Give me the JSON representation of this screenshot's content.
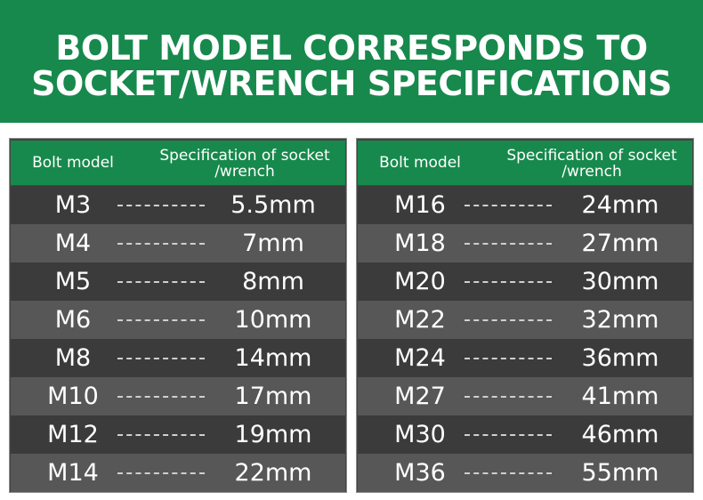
{
  "header": {
    "title": [
      "BOLT MODEL CORRESPONDS TO",
      "SOCKET/WRENCH SPECIFICATIONS"
    ]
  },
  "tables": [
    {
      "columns": {
        "model": "Bolt model",
        "spec": [
          "Specification of socket",
          "/wrench"
        ]
      },
      "rows": [
        [
          "M3",
          "5.5mm"
        ],
        [
          "M4",
          "7mm"
        ],
        [
          "M5",
          "8mm"
        ],
        [
          "M6",
          "10mm"
        ],
        [
          "M8",
          "14mm"
        ],
        [
          "M10",
          "17mm"
        ],
        [
          "M12",
          "19mm"
        ],
        [
          "M14",
          "22mm"
        ]
      ]
    },
    {
      "columns": {
        "model": "Bolt model",
        "spec": [
          "Specification of socket",
          "/wrench"
        ]
      },
      "rows": [
        [
          "M16",
          "24mm"
        ],
        [
          "M18",
          "27mm"
        ],
        [
          "M20",
          "30mm"
        ],
        [
          "M22",
          "32mm"
        ],
        [
          "M24",
          "36mm"
        ],
        [
          "M27",
          "41mm"
        ],
        [
          "M30",
          "46mm"
        ],
        [
          "M36",
          "55mm"
        ]
      ]
    }
  ]
}
